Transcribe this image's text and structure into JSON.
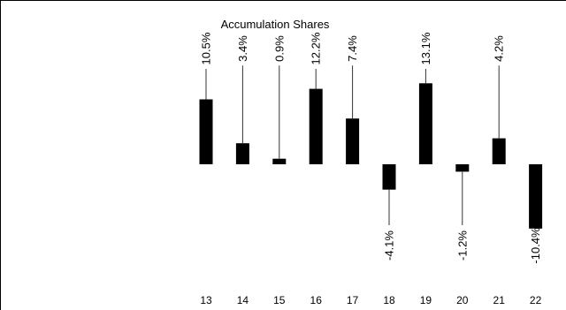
{
  "chart_data": {
    "type": "bar",
    "title": "Accumulation Shares",
    "categories": [
      "13",
      "14",
      "15",
      "16",
      "17",
      "18",
      "19",
      "20",
      "21",
      "22"
    ],
    "values": [
      10.5,
      3.4,
      0.9,
      12.2,
      7.4,
      -4.1,
      13.1,
      -1.2,
      4.2,
      -10.4
    ],
    "data_labels": [
      "10.5%",
      "3.4%",
      "0.9%",
      "12.2%",
      "7.4%",
      "-4.1%",
      "13.1%",
      "-1.2%",
      "4.2%",
      "-10.4%"
    ],
    "xlabel": "",
    "ylabel": "",
    "grid": false,
    "bar_color": "#000000"
  }
}
